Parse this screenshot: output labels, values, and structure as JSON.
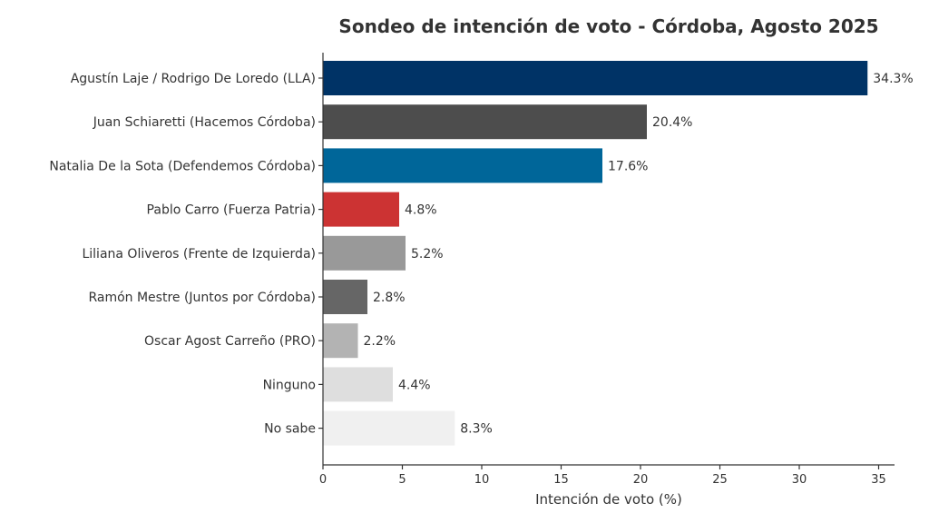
{
  "chart_data": {
    "type": "bar",
    "orientation": "horizontal",
    "title": "Sondeo de intención de voto - Córdoba, Agosto 2025",
    "xlabel": "Intención de voto (%)",
    "ylabel": "",
    "xlim": [
      0,
      36
    ],
    "xticks": [
      0,
      5,
      10,
      15,
      20,
      25,
      30,
      35
    ],
    "grid": false,
    "value_suffix": "%",
    "categories": [
      "Agustín Laje / Rodrigo De Loredo (LLA)",
      "Juan Schiaretti (Hacemos Córdoba)",
      "Natalia De la Sota (Defendemos Córdoba)",
      "Pablo Carro (Fuerza Patria)",
      "Liliana Oliveros (Frente de Izquierda)",
      "Ramón Mestre (Juntos por Córdoba)",
      "Oscar Agost Carreño (PRO)",
      "Ninguno",
      "No sabe"
    ],
    "values": [
      34.3,
      20.4,
      17.6,
      4.8,
      5.2,
      2.8,
      2.2,
      4.4,
      8.3
    ],
    "colors": [
      "#003366",
      "#4d4d4d",
      "#006699",
      "#cc3333",
      "#999999",
      "#666666",
      "#b3b3b3",
      "#dedede",
      "#f0f0f0"
    ]
  }
}
